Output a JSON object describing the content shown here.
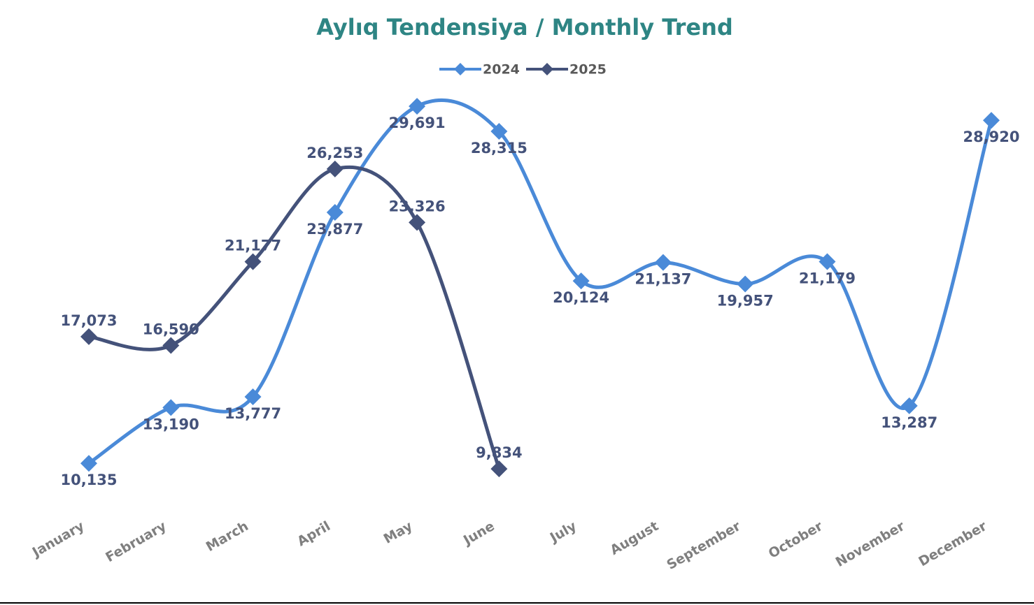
{
  "chart_data": {
    "type": "line",
    "title": "Aylıq Tendensiya  /  Monthly Trend",
    "categories": [
      "January",
      "February",
      "March",
      "April",
      "May",
      "June",
      "July",
      "August",
      "September",
      "October",
      "November",
      "December"
    ],
    "series": [
      {
        "name": "2024",
        "color": "#4a8ad8",
        "values": [
          10135,
          13190,
          13777,
          23877,
          29691,
          28315,
          20124,
          21137,
          19957,
          21179,
          13287,
          28920
        ],
        "value_labels": [
          "10,135",
          "13,190",
          "13,777",
          "23,877",
          "29,691",
          "28,315",
          "20,124",
          "21,137",
          "19,957",
          "21,179",
          "13,287",
          "28,920"
        ]
      },
      {
        "name": "2025",
        "color": "#44527a",
        "values": [
          17073,
          16590,
          21177,
          26253,
          23326,
          9834,
          null,
          null,
          null,
          null,
          null,
          null
        ],
        "value_labels": [
          "17,073",
          "16,590",
          "21,177",
          "26,253",
          "23,326",
          "9,834",
          null,
          null,
          null,
          null,
          null,
          null
        ]
      }
    ],
    "ylim": [
      8000,
      30000
    ],
    "legend": "top",
    "smooth": true
  }
}
